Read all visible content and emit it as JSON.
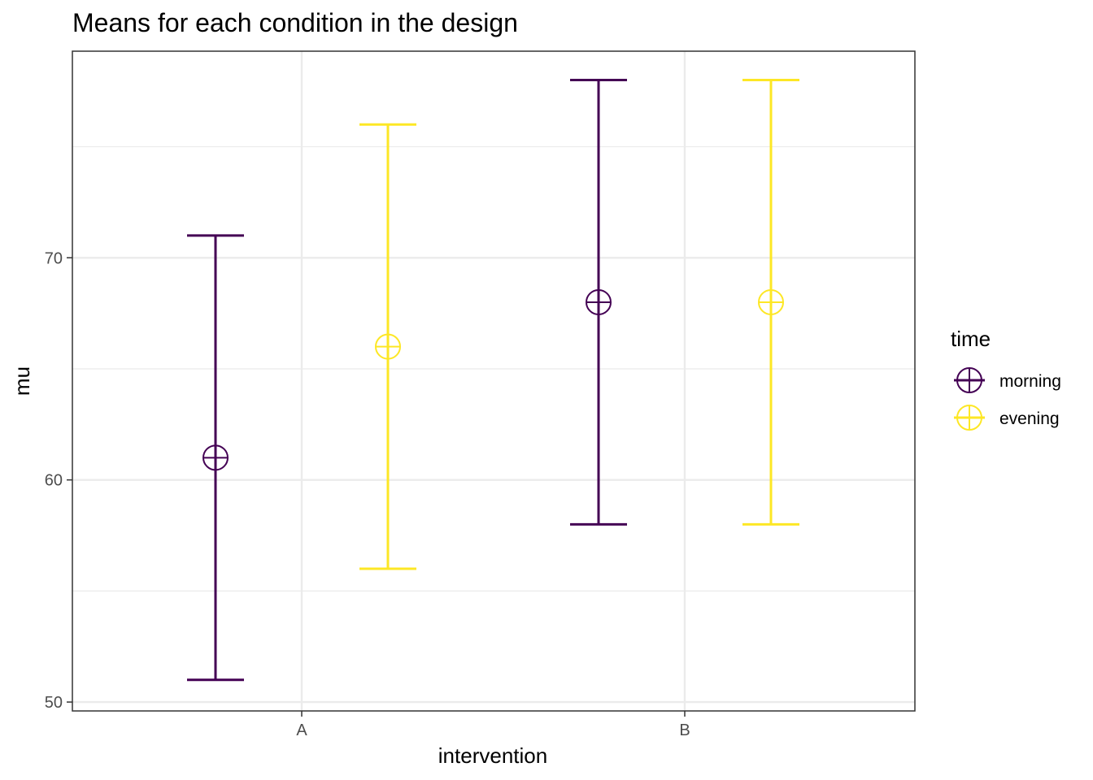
{
  "chart_data": {
    "type": "errorbar",
    "title": "Means for each condition in the design",
    "xlabel": "intervention",
    "ylabel": "mu",
    "categories": [
      "A",
      "B"
    ],
    "y_ticks": [
      50,
      60,
      70
    ],
    "y_tick_labels": [
      "50",
      "60",
      "70"
    ],
    "ylim": [
      49.6,
      79.3
    ],
    "grid": true,
    "legend": {
      "title": "time",
      "position": "right"
    },
    "series": [
      {
        "name": "morning",
        "color": "#440154",
        "points": [
          {
            "category": "A",
            "mean": 61,
            "lower": 51,
            "upper": 71
          },
          {
            "category": "B",
            "mean": 68,
            "lower": 58,
            "upper": 78
          }
        ]
      },
      {
        "name": "evening",
        "color": "#FDE725",
        "points": [
          {
            "category": "A",
            "mean": 66,
            "lower": 56,
            "upper": 76
          },
          {
            "category": "B",
            "mean": 68,
            "lower": 58,
            "upper": 78
          }
        ]
      }
    ]
  }
}
